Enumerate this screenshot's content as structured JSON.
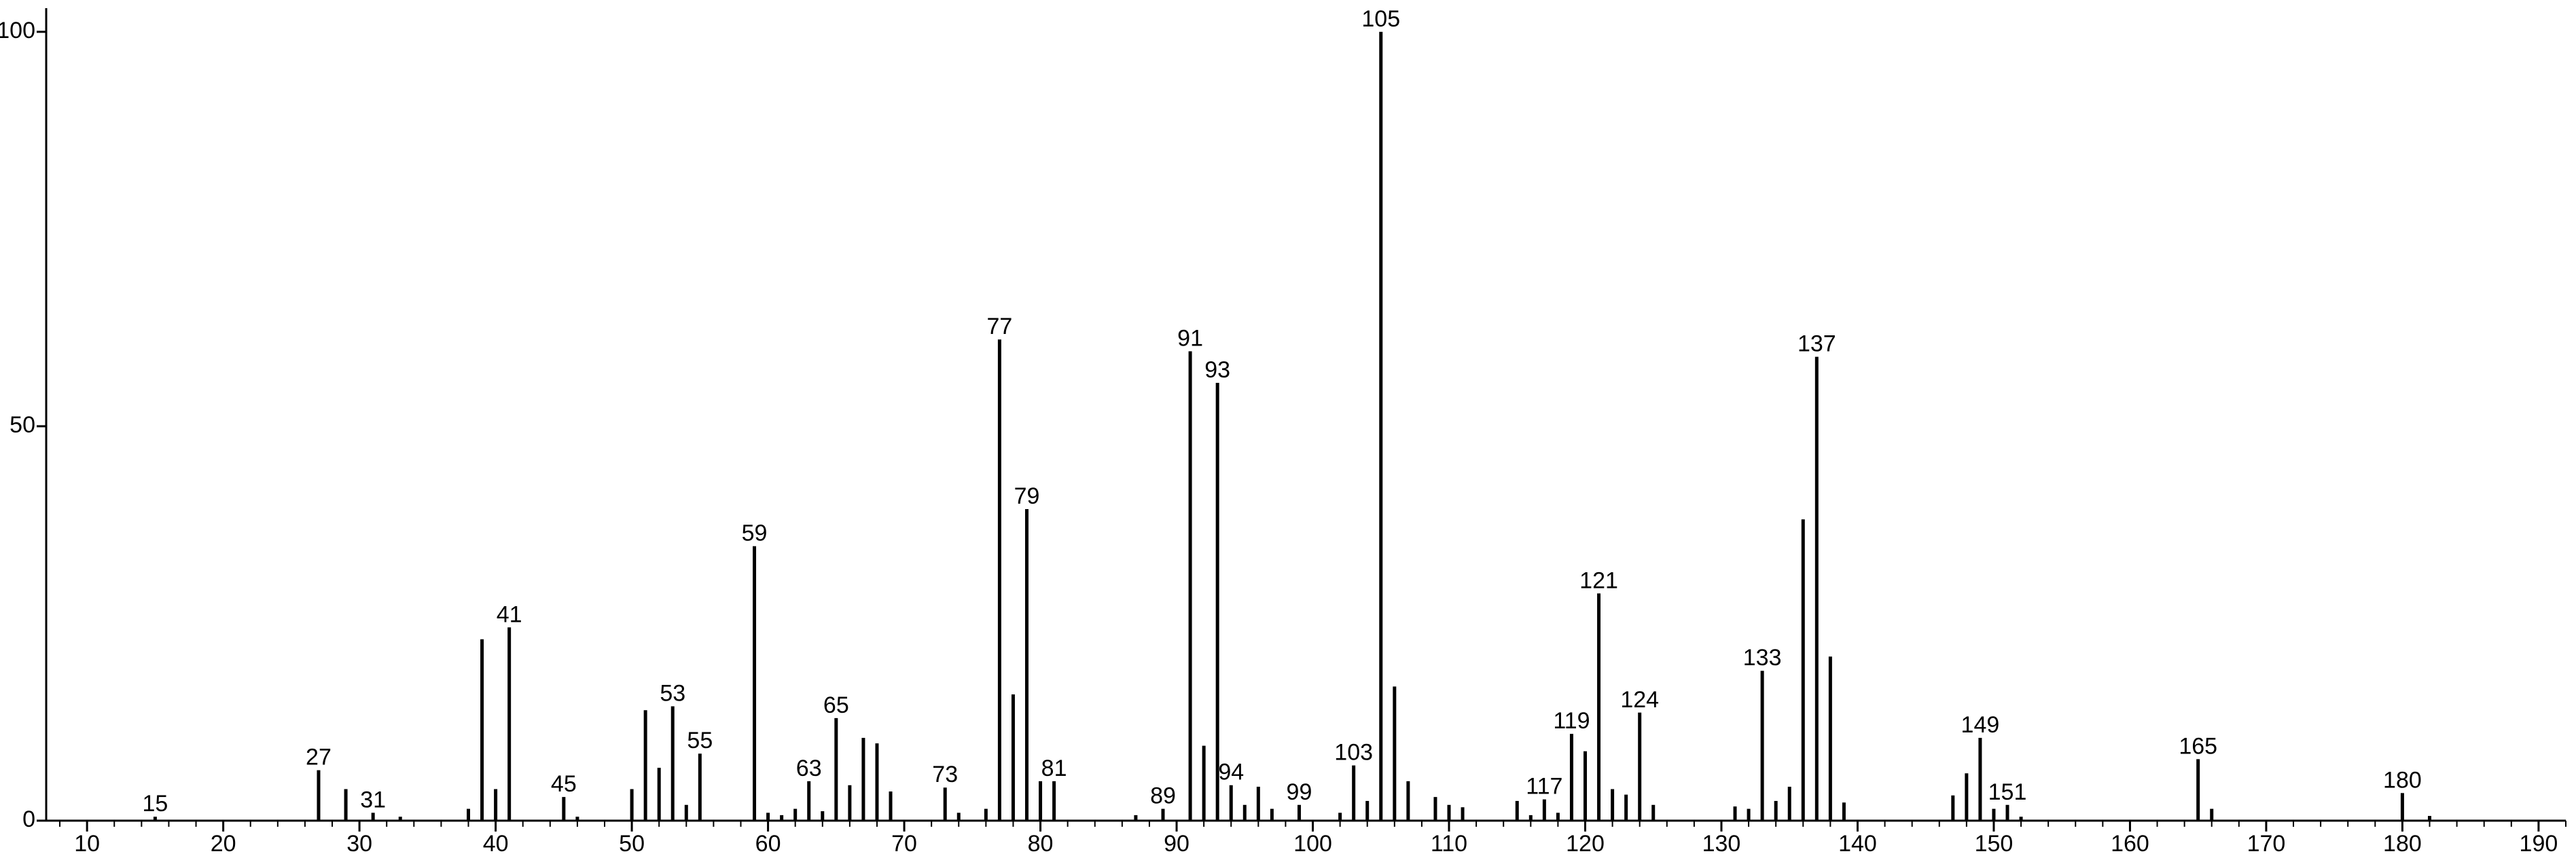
{
  "chart_data": {
    "type": "stick",
    "x": [
      15,
      27,
      29,
      31,
      33,
      38,
      39,
      40,
      41,
      45,
      46,
      50,
      51,
      52,
      53,
      54,
      55,
      59,
      60,
      61,
      62,
      63,
      64,
      65,
      66,
      67,
      68,
      69,
      73,
      74,
      76,
      77,
      78,
      79,
      80,
      81,
      87,
      89,
      91,
      92,
      93,
      94,
      95,
      96,
      97,
      99,
      102,
      103,
      104,
      105,
      106,
      107,
      109,
      110,
      111,
      115,
      116,
      117,
      118,
      119,
      120,
      121,
      122,
      123,
      124,
      125,
      131,
      132,
      133,
      134,
      135,
      136,
      137,
      138,
      139,
      147,
      148,
      149,
      150,
      151,
      152,
      165,
      166,
      180,
      182
    ],
    "values": [
      0.5,
      6.4,
      4,
      1,
      0.5,
      1.5,
      23,
      4,
      24.5,
      3,
      0.5,
      4,
      14,
      6.7,
      14.5,
      2,
      8.5,
      34.8,
      1,
      0.7,
      1.5,
      5,
      1.2,
      13,
      4.5,
      10.5,
      9.8,
      3.7,
      4.2,
      1,
      1.5,
      61,
      16,
      39.5,
      5,
      5,
      0.7,
      1.5,
      59.5,
      9.5,
      55.5,
      4.5,
      2,
      4.3,
      1.5,
      2,
      1,
      7,
      2.5,
      100,
      17,
      5,
      3,
      2,
      1.7,
      2.5,
      0.7,
      2.7,
      1,
      11,
      8.8,
      28.8,
      4,
      3.3,
      13.7,
      2,
      1.8,
      1.5,
      19,
      2.5,
      4.3,
      38.2,
      58.8,
      20.8,
      2.3,
      3.2,
      6,
      10.5,
      1.5,
      2,
      0.5,
      7.8,
      1.5,
      3.5,
      0.6
    ],
    "labels": [
      15,
      27,
      null,
      31,
      null,
      null,
      null,
      null,
      41,
      45,
      null,
      null,
      null,
      null,
      53,
      null,
      55,
      59,
      null,
      null,
      null,
      63,
      null,
      65,
      null,
      null,
      null,
      null,
      73,
      null,
      null,
      77,
      null,
      79,
      null,
      81,
      null,
      89,
      91,
      null,
      93,
      94,
      null,
      null,
      null,
      99,
      null,
      103,
      null,
      105,
      null,
      null,
      null,
      null,
      null,
      null,
      null,
      117,
      null,
      119,
      null,
      121,
      null,
      null,
      124,
      null,
      null,
      null,
      133,
      null,
      null,
      null,
      137,
      null,
      null,
      null,
      null,
      149,
      null,
      151,
      null,
      165,
      null,
      180,
      null
    ],
    "color": "#000000",
    "xlim": [
      7,
      192
    ],
    "xticks": [
      10,
      20,
      30,
      40,
      50,
      60,
      70,
      80,
      90,
      100,
      110,
      120,
      130,
      140,
      150,
      160,
      170,
      180,
      190
    ],
    "xminorticks": [
      8,
      12,
      14,
      16,
      18,
      22,
      24,
      26,
      28,
      32,
      34,
      36,
      38,
      42,
      44,
      46,
      48,
      52,
      54,
      56,
      58,
      62,
      64,
      66,
      68,
      72,
      74,
      76,
      78,
      82,
      84,
      86,
      88,
      92,
      94,
      96,
      98,
      102,
      104,
      106,
      108,
      112,
      114,
      116,
      118,
      122,
      124,
      126,
      128,
      132,
      134,
      136,
      138,
      142,
      144,
      146,
      148,
      152,
      154,
      156,
      158,
      162,
      164,
      166,
      168,
      172,
      174,
      176,
      178,
      182,
      184,
      186,
      188,
      192
    ],
    "ylim": [
      0,
      103
    ],
    "yticks": [
      0,
      50,
      100
    ]
  }
}
